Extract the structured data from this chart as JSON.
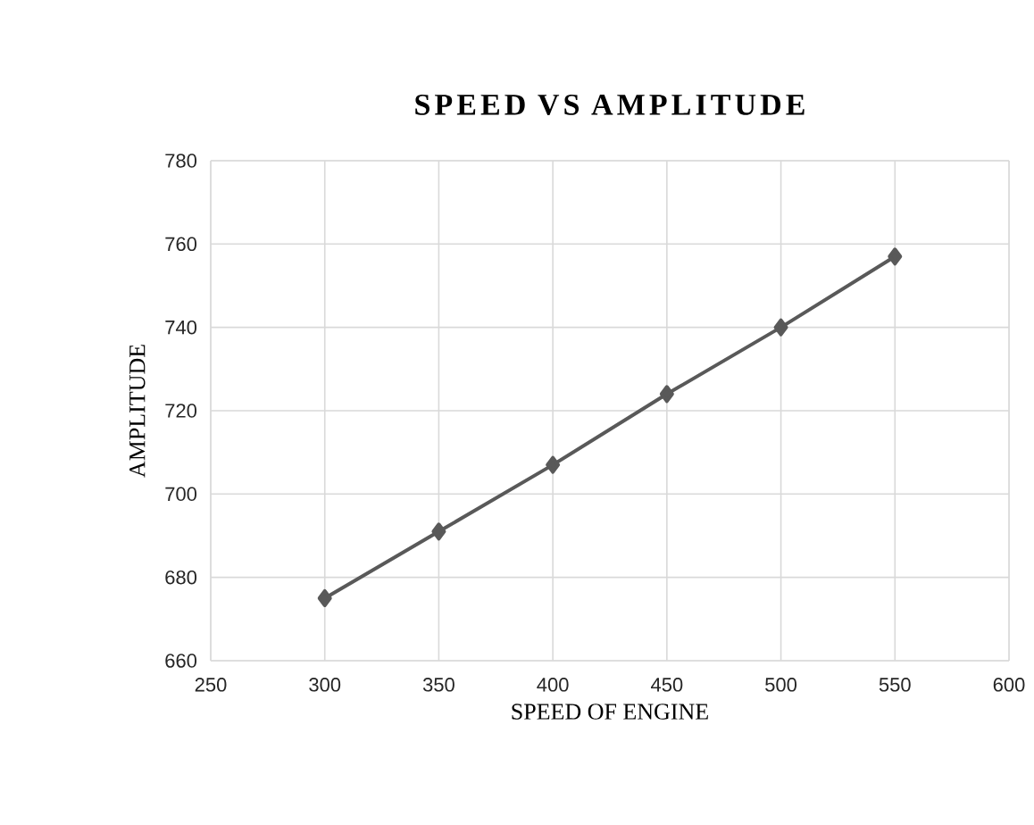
{
  "chart_data": {
    "type": "line",
    "title": "SPEED VS AMPLITUDE",
    "xlabel": "SPEED OF ENGINE",
    "ylabel": "AMPLITUDE",
    "x": [
      300,
      350,
      400,
      450,
      500,
      550
    ],
    "series": [
      {
        "color": "#595959",
        "values": [
          675,
          691,
          707,
          724,
          740,
          757
        ]
      }
    ],
    "xlim": [
      250,
      600
    ],
    "xticks": [
      250,
      300,
      350,
      400,
      450,
      500,
      550,
      600
    ],
    "ylim": [
      660,
      780
    ],
    "yticks": [
      660,
      680,
      700,
      720,
      740,
      760,
      780
    ],
    "grid": true,
    "marker": "diamond",
    "line_style": "solid"
  }
}
